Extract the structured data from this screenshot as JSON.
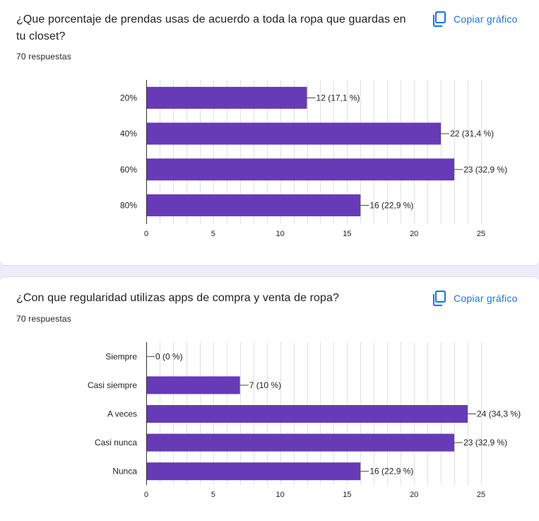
{
  "copy_label": "Copiar gráfico",
  "charts": [
    {
      "title": "¿Que porcentaje de prendas usas de acuerdo a toda la ropa que guardas en tu closet?",
      "responses": "70 respuestas"
    },
    {
      "title": "¿Con que regularidad utilizas apps de compra y venta de ropa?",
      "responses": "70 respuestas"
    }
  ],
  "colors": {
    "bar": "#673ab7",
    "accent": "#1a73e8"
  },
  "chart_data": [
    {
      "type": "bar",
      "orientation": "horizontal",
      "categories": [
        "20%",
        "40%",
        "60%",
        "80%"
      ],
      "values": [
        12,
        22,
        23,
        16
      ],
      "data_labels": [
        "12 (17,1 %)",
        "22 (31,4 %)",
        "23 (32,9 %)",
        "16 (22,9 %)"
      ],
      "xlim": [
        0,
        25
      ],
      "xticks": [
        0,
        5,
        10,
        15,
        20,
        25
      ],
      "grid": true
    },
    {
      "type": "bar",
      "orientation": "horizontal",
      "categories": [
        "Siempre",
        "Casi siempre",
        "A veces",
        "Casi nunca",
        "Nunca"
      ],
      "values": [
        0,
        7,
        24,
        23,
        16
      ],
      "data_labels": [
        "0 (0 %)",
        "7 (10 %)",
        "24 (34,3 %)",
        "23 (32,9 %)",
        "16 (22,9 %)"
      ],
      "xlim": [
        0,
        25
      ],
      "xticks": [
        0,
        5,
        10,
        15,
        20,
        25
      ],
      "grid": true
    }
  ]
}
